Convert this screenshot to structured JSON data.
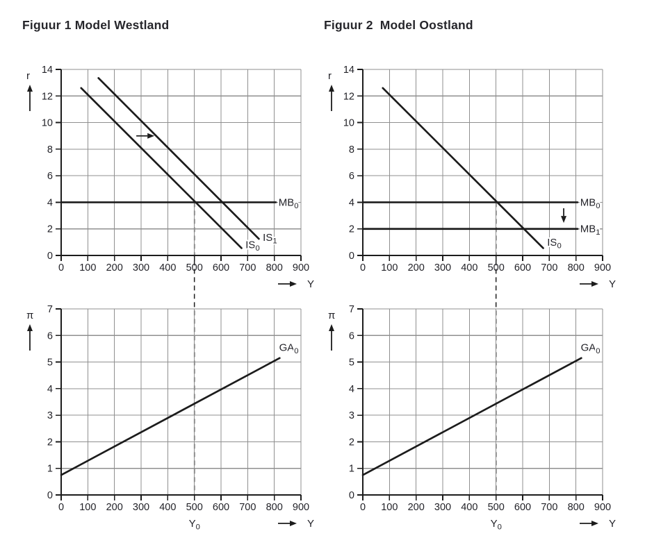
{
  "page": {
    "background": "#ffffff"
  },
  "figures": [
    {
      "id": "westland",
      "title": "Figuur 1 Model Westland"
    },
    {
      "id": "oostland",
      "title": "Figuur 2  Model Oostland"
    }
  ],
  "colors": {
    "series_line": "#1c1c1c",
    "axis": "#1c1c1c",
    "grid": "#8f8f8f",
    "text": "#232329",
    "dashed_guide": "#1f1f1f"
  },
  "chart_data": [
    {
      "id": "westland-top",
      "type": "line",
      "figure": "Figuur 1 Model Westland",
      "position": "top-left",
      "xlabel": "Y",
      "ylabel": "r",
      "xlim": [
        0,
        900
      ],
      "ylim": [
        0,
        14
      ],
      "x_ticks": [
        0,
        100,
        200,
        300,
        400,
        500,
        600,
        700,
        800,
        900
      ],
      "y_ticks": [
        0,
        2,
        4,
        6,
        8,
        10,
        12,
        14
      ],
      "grid": true,
      "series": [
        {
          "name": "IS_0",
          "points": [
            [
              75,
              12.6
            ],
            [
              677,
              0.55
            ]
          ],
          "label_at": [
            692,
            0.8
          ]
        },
        {
          "name": "IS_1",
          "points": [
            [
              140,
              13.35
            ],
            [
              742,
              1.25
            ]
          ],
          "label_at": [
            757,
            1.35
          ]
        },
        {
          "name": "MB_0",
          "points": [
            [
              0,
              4
            ],
            [
              806,
              4
            ]
          ],
          "label_at": [
            816,
            4
          ]
        }
      ],
      "annotations": [
        {
          "type": "arrow",
          "meaning": "IS shifts right",
          "from": [
            282,
            9
          ],
          "to": [
            350,
            9
          ]
        }
      ],
      "dashed_guide": {
        "x": 500,
        "from_r": 4,
        "down_to": "bottom-chart-x-axis"
      }
    },
    {
      "id": "oostland-top",
      "type": "line",
      "figure": "Figuur 2  Model Oostland",
      "position": "top-right",
      "xlabel": "Y",
      "ylabel": "r",
      "xlim": [
        0,
        900
      ],
      "ylim": [
        0,
        14
      ],
      "x_ticks": [
        0,
        100,
        200,
        300,
        400,
        500,
        600,
        700,
        800,
        900
      ],
      "y_ticks": [
        0,
        2,
        4,
        6,
        8,
        10,
        12,
        14
      ],
      "grid": true,
      "series": [
        {
          "name": "IS_0",
          "points": [
            [
              75,
              12.6
            ],
            [
              677,
              0.55
            ]
          ],
          "label_at": [
            692,
            1.0
          ]
        },
        {
          "name": "MB_0",
          "points": [
            [
              0,
              4
            ],
            [
              806,
              4
            ]
          ],
          "label_at": [
            816,
            4
          ]
        },
        {
          "name": "MB_1",
          "points": [
            [
              0,
              2
            ],
            [
              806,
              2
            ]
          ],
          "label_at": [
            816,
            2
          ]
        }
      ],
      "annotations": [
        {
          "type": "arrow",
          "meaning": "MB shifts down",
          "from": [
            754,
            3.55
          ],
          "to": [
            754,
            2.45
          ]
        }
      ],
      "dashed_guide": {
        "x": 500,
        "from_r": 4,
        "down_to": "bottom-chart-x-axis"
      }
    },
    {
      "id": "westland-bottom",
      "type": "line",
      "figure": "Figuur 1 Model Westland",
      "position": "bottom-left",
      "xlabel": "Y",
      "ylabel": "π",
      "xlim": [
        0,
        900
      ],
      "ylim": [
        0,
        7
      ],
      "x_ticks": [
        0,
        100,
        200,
        300,
        400,
        500,
        600,
        700,
        800,
        900
      ],
      "y_ticks": [
        0,
        1,
        2,
        3,
        4,
        5,
        6,
        7
      ],
      "grid": true,
      "x_sub_label": {
        "text": "Y_0",
        "at_x": 500
      },
      "series": [
        {
          "name": "GA_0",
          "points": [
            [
              0,
              0.75
            ],
            [
              820,
              5.15
            ]
          ],
          "label_at": [
            818,
            5.55
          ]
        }
      ],
      "annotations": []
    },
    {
      "id": "oostland-bottom",
      "type": "line",
      "figure": "Figuur 2  Model Oostland",
      "position": "bottom-right",
      "xlabel": "Y",
      "ylabel": "π",
      "xlim": [
        0,
        900
      ],
      "ylim": [
        0,
        7
      ],
      "x_ticks": [
        0,
        100,
        200,
        300,
        400,
        500,
        600,
        700,
        800,
        900
      ],
      "y_ticks": [
        0,
        1,
        2,
        3,
        4,
        5,
        6,
        7
      ],
      "grid": true,
      "x_sub_label": {
        "text": "Y_0",
        "at_x": 500
      },
      "series": [
        {
          "name": "GA_0",
          "points": [
            [
              0,
              0.75
            ],
            [
              820,
              5.15
            ]
          ],
          "label_at": [
            818,
            5.55
          ]
        }
      ],
      "annotations": []
    }
  ],
  "guides": [
    {
      "column": "left",
      "x": 500,
      "from_r": 4
    },
    {
      "column": "right",
      "x": 500,
      "from_r": 4
    }
  ]
}
